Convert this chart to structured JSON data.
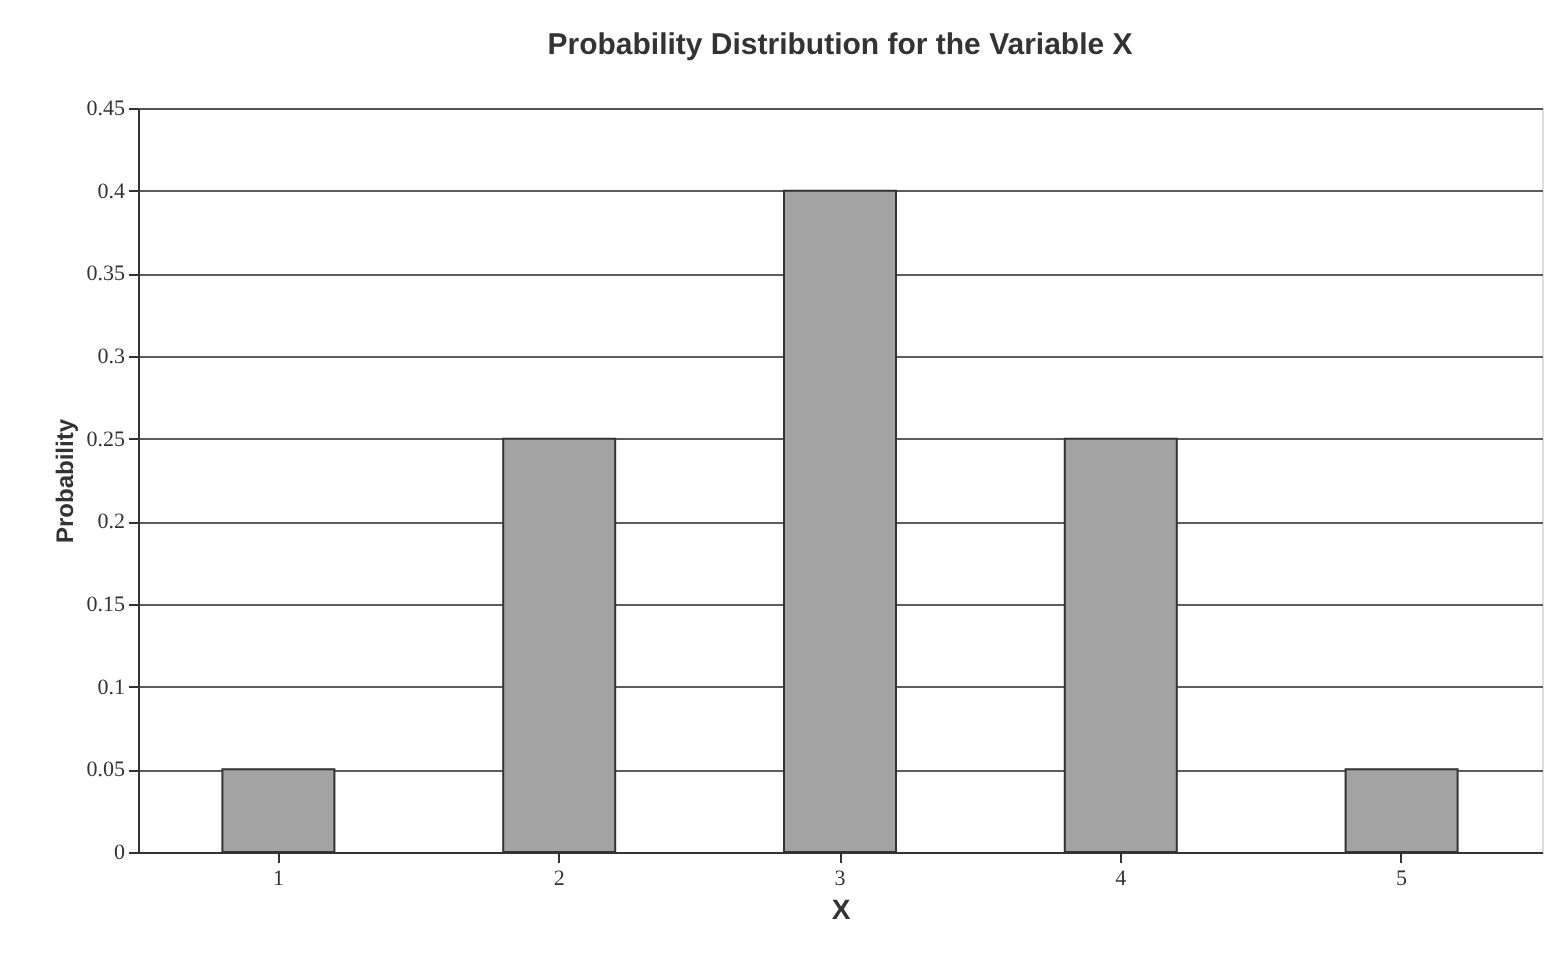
{
  "chart_data": {
    "type": "bar",
    "title": "Probability Distribution for the Variable X",
    "xlabel": "X",
    "ylabel": "Probability",
    "categories": [
      "1",
      "2",
      "3",
      "4",
      "5"
    ],
    "values": [
      0.05,
      0.25,
      0.4,
      0.25,
      0.05
    ],
    "color": "#a3a3a3",
    "ylim": [
      0,
      0.45
    ],
    "yticks": [
      0,
      0.05,
      0.1,
      0.15,
      0.2,
      0.25,
      0.3,
      0.35,
      0.4,
      0.45
    ],
    "grid": "y"
  }
}
